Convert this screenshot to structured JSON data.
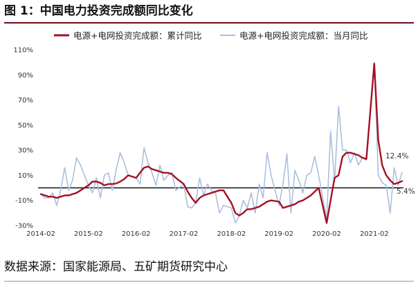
{
  "figure": {
    "title": "图 1：中国电力投资完成额同比变化",
    "source": "数据来源：国家能源局、五矿期货研究中心"
  },
  "colors": {
    "cumulative": "#a50f24",
    "monthly": "#a9bfdf",
    "title_rule": "#6b0d1a",
    "zero_line": "#000000"
  },
  "chart_data": {
    "type": "line",
    "title": "",
    "xlabel": "",
    "ylabel": "",
    "ylim": [
      -30,
      110
    ],
    "y_ticks": [
      "-30%",
      "-10%",
      "10%",
      "30%",
      "50%",
      "70%",
      "90%",
      "110%"
    ],
    "x_ticks": [
      "2014-02",
      "2015-02",
      "2016-02",
      "2017-02",
      "2018-02",
      "2019-02",
      "2020-02",
      "2021-02"
    ],
    "legend_position": "top",
    "grid": false,
    "annotations": [
      {
        "text": "12.4%",
        "series": "电源+电网投资完成额：当月同比",
        "date": "2021-09",
        "value": 12.4
      },
      {
        "text": "5.4%",
        "series": "电源+电网投资完成额：累计同比",
        "date": "2021-09",
        "value": 5.4
      }
    ],
    "series": [
      {
        "name": "电源+电网投资完成额：累计同比",
        "style": "thick",
        "points": [
          [
            "2014-02",
            -5.0
          ],
          [
            "2014-03",
            -6.0
          ],
          [
            "2014-04",
            -7.0
          ],
          [
            "2014-05",
            -7.0
          ],
          [
            "2014-06",
            -8.0
          ],
          [
            "2014-07",
            -7.0
          ],
          [
            "2014-08",
            -6.0
          ],
          [
            "2014-09",
            -6.0
          ],
          [
            "2014-10",
            -5.0
          ],
          [
            "2014-11",
            -4.0
          ],
          [
            "2014-12",
            -2.0
          ],
          [
            "2015-02",
            2.0
          ],
          [
            "2015-03",
            5.0
          ],
          [
            "2015-04",
            5.0
          ],
          [
            "2015-05",
            4.0
          ],
          [
            "2015-06",
            2.0
          ],
          [
            "2015-07",
            3.0
          ],
          [
            "2015-08",
            3.0
          ],
          [
            "2015-09",
            3.5
          ],
          [
            "2015-10",
            5.0
          ],
          [
            "2015-11",
            7.0
          ],
          [
            "2015-12",
            10.0
          ],
          [
            "2016-02",
            8.0
          ],
          [
            "2016-03",
            12.0
          ],
          [
            "2016-04",
            16.0
          ],
          [
            "2016-05",
            17.0
          ],
          [
            "2016-06",
            15.0
          ],
          [
            "2016-07",
            14.0
          ],
          [
            "2016-08",
            13.0
          ],
          [
            "2016-09",
            12.0
          ],
          [
            "2016-10",
            12.0
          ],
          [
            "2016-11",
            11.0
          ],
          [
            "2016-12",
            8.0
          ],
          [
            "2017-02",
            3.0
          ],
          [
            "2017-03",
            -3.0
          ],
          [
            "2017-04",
            -8.0
          ],
          [
            "2017-05",
            -12.0
          ],
          [
            "2017-06",
            -8.0
          ],
          [
            "2017-07",
            -6.0
          ],
          [
            "2017-08",
            -5.0
          ],
          [
            "2017-09",
            -4.0
          ],
          [
            "2017-10",
            -3.0
          ],
          [
            "2017-11",
            -2.0
          ],
          [
            "2017-12",
            -2.0
          ],
          [
            "2018-02",
            -12.0
          ],
          [
            "2018-03",
            -20.0
          ],
          [
            "2018-04",
            -22.0
          ],
          [
            "2018-05",
            -20.0
          ],
          [
            "2018-06",
            -17.0
          ],
          [
            "2018-07",
            -17.0
          ],
          [
            "2018-08",
            -16.0
          ],
          [
            "2018-09",
            -15.0
          ],
          [
            "2018-10",
            -13.0
          ],
          [
            "2018-11",
            -11.0
          ],
          [
            "2018-12",
            -10.0
          ],
          [
            "2019-02",
            -11.0
          ],
          [
            "2019-03",
            -16.0
          ],
          [
            "2019-04",
            -15.0
          ],
          [
            "2019-05",
            -14.0
          ],
          [
            "2019-06",
            -13.0
          ],
          [
            "2019-07",
            -11.0
          ],
          [
            "2019-08",
            -10.0
          ],
          [
            "2019-09",
            -8.0
          ],
          [
            "2019-10",
            -6.0
          ],
          [
            "2019-11",
            -3.0
          ],
          [
            "2019-12",
            0.0
          ],
          [
            "2020-02",
            -28.0
          ],
          [
            "2020-03",
            -10.0
          ],
          [
            "2020-04",
            8.0
          ],
          [
            "2020-05",
            10.0
          ],
          [
            "2020-06",
            25.0
          ],
          [
            "2020-07",
            28.0
          ],
          [
            "2020-08",
            28.0
          ],
          [
            "2020-09",
            27.0
          ],
          [
            "2020-10",
            26.0
          ],
          [
            "2020-11",
            24.0
          ],
          [
            "2020-12",
            23.0
          ],
          [
            "2021-02",
            99.0
          ],
          [
            "2021-03",
            38.0
          ],
          [
            "2021-04",
            18.0
          ],
          [
            "2021-05",
            10.0
          ],
          [
            "2021-06",
            6.0
          ],
          [
            "2021-07",
            3.0
          ],
          [
            "2021-08",
            4.0
          ],
          [
            "2021-09",
            5.4
          ]
        ]
      },
      {
        "name": "电源+电网投资完成额：当月同比",
        "style": "thin",
        "points": [
          [
            "2014-02",
            -5.0
          ],
          [
            "2014-03",
            -8.0
          ],
          [
            "2014-04",
            -8.0
          ],
          [
            "2014-05",
            -4.0
          ],
          [
            "2014-06",
            -14.0
          ],
          [
            "2014-07",
            -2.0
          ],
          [
            "2014-08",
            16.0
          ],
          [
            "2014-09",
            -2.0
          ],
          [
            "2014-10",
            6.0
          ],
          [
            "2014-11",
            24.0
          ],
          [
            "2014-12",
            18.0
          ],
          [
            "2015-02",
            2.0
          ],
          [
            "2015-03",
            -4.0
          ],
          [
            "2015-04",
            8.0
          ],
          [
            "2015-05",
            -8.0
          ],
          [
            "2015-06",
            10.0
          ],
          [
            "2015-07",
            12.0
          ],
          [
            "2015-08",
            -2.0
          ],
          [
            "2015-09",
            15.0
          ],
          [
            "2015-10",
            28.0
          ],
          [
            "2015-11",
            20.0
          ],
          [
            "2015-12",
            10.0
          ],
          [
            "2016-02",
            8.0
          ],
          [
            "2016-03",
            3.0
          ],
          [
            "2016-04",
            32.0
          ],
          [
            "2016-05",
            20.0
          ],
          [
            "2016-06",
            12.0
          ],
          [
            "2016-07",
            2.0
          ],
          [
            "2016-08",
            18.0
          ],
          [
            "2016-09",
            6.0
          ],
          [
            "2016-10",
            10.0
          ],
          [
            "2016-11",
            12.0
          ],
          [
            "2016-12",
            -2.0
          ],
          [
            "2017-02",
            3.0
          ],
          [
            "2017-03",
            -15.0
          ],
          [
            "2017-04",
            -16.0
          ],
          [
            "2017-05",
            -12.0
          ],
          [
            "2017-06",
            8.0
          ],
          [
            "2017-07",
            -6.0
          ],
          [
            "2017-08",
            3.0
          ],
          [
            "2017-09",
            -2.0
          ],
          [
            "2017-10",
            -4.0
          ],
          [
            "2017-11",
            -20.0
          ],
          [
            "2017-12",
            -14.0
          ],
          [
            "2018-02",
            -16.0
          ],
          [
            "2018-03",
            -28.0
          ],
          [
            "2018-04",
            -22.0
          ],
          [
            "2018-05",
            -10.0
          ],
          [
            "2018-06",
            -16.0
          ],
          [
            "2018-07",
            -4.0
          ],
          [
            "2018-08",
            -20.0
          ],
          [
            "2018-09",
            3.0
          ],
          [
            "2018-10",
            -8.0
          ],
          [
            "2018-11",
            28.0
          ],
          [
            "2018-12",
            10.0
          ],
          [
            "2019-02",
            -14.0
          ],
          [
            "2019-03",
            3.0
          ],
          [
            "2019-04",
            27.0
          ],
          [
            "2019-05",
            -20.0
          ],
          [
            "2019-06",
            14.0
          ],
          [
            "2019-07",
            6.0
          ],
          [
            "2019-08",
            -4.0
          ],
          [
            "2019-09",
            10.0
          ],
          [
            "2019-10",
            12.0
          ],
          [
            "2019-11",
            25.0
          ],
          [
            "2019-12",
            10.0
          ],
          [
            "2020-02",
            -25.0
          ],
          [
            "2020-03",
            45.0
          ],
          [
            "2020-04",
            5.0
          ],
          [
            "2020-05",
            65.0
          ],
          [
            "2020-06",
            30.0
          ],
          [
            "2020-07",
            30.0
          ],
          [
            "2020-08",
            20.0
          ],
          [
            "2020-09",
            28.0
          ],
          [
            "2020-10",
            18.0
          ],
          [
            "2020-11",
            24.0
          ],
          [
            "2020-12",
            22.0
          ],
          [
            "2021-02",
            100.0
          ],
          [
            "2021-03",
            10.0
          ],
          [
            "2021-04",
            4.0
          ],
          [
            "2021-05",
            2.0
          ],
          [
            "2021-06",
            -20.0
          ],
          [
            "2021-07",
            16.0
          ],
          [
            "2021-08",
            2.0
          ],
          [
            "2021-09",
            12.4
          ]
        ]
      }
    ]
  }
}
